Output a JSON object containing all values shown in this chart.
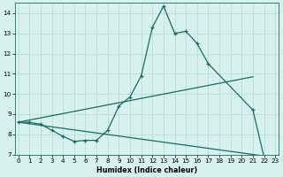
{
  "xlabel": "Humidex (Indice chaleur)",
  "line1": {
    "x": [
      0,
      1,
      2,
      3,
      4,
      5,
      6,
      7,
      8,
      9,
      10,
      11,
      12,
      13,
      14,
      15,
      16,
      17,
      21,
      22,
      23
    ],
    "y": [
      8.6,
      8.6,
      8.5,
      8.2,
      7.9,
      7.65,
      7.7,
      7.7,
      8.2,
      9.4,
      9.85,
      10.9,
      13.3,
      14.35,
      13.0,
      13.1,
      12.5,
      11.5,
      9.2,
      6.85,
      6.85
    ]
  },
  "line2_x": [
    0,
    23
  ],
  "line2_y": [
    8.6,
    6.85
  ],
  "line3_x": [
    0,
    21
  ],
  "line3_y": [
    8.6,
    10.85
  ],
  "bg_color": "#d7f2ee",
  "grid_color": "#b8d8d2",
  "line_color": "#1a6b5e",
  "ylim": [
    7,
    14.5
  ],
  "yticks": [
    7,
    8,
    9,
    10,
    11,
    12,
    13,
    14
  ],
  "xlim": [
    -0.3,
    23.3
  ],
  "xticks": [
    0,
    1,
    2,
    3,
    4,
    5,
    6,
    7,
    8,
    9,
    10,
    11,
    12,
    13,
    14,
    15,
    16,
    17,
    18,
    19,
    20,
    21,
    22,
    23
  ]
}
